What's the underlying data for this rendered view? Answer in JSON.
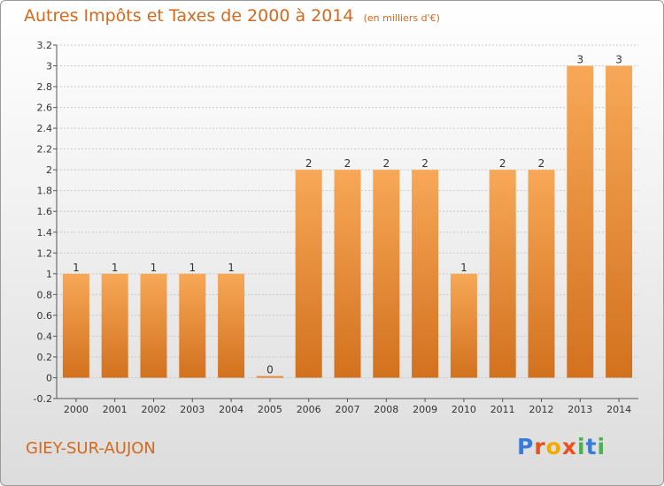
{
  "title": "Autres Impôts et Taxes de 2000 à 2014",
  "subtitle": "(en milliers d'€)",
  "commune": "GIEY-SUR-AUJON",
  "logo": {
    "letters": [
      "P",
      "r",
      "o",
      "x",
      "i",
      "t",
      "i"
    ],
    "colors": [
      "#3a7bd5",
      "#e8501e",
      "#f2a900",
      "#e8501e",
      "#4caf50",
      "#3a7bd5",
      "#4caf50"
    ]
  },
  "colors": {
    "bar": "#f0953f",
    "bar_light": "#f7a857",
    "bar_dark": "#d2711e",
    "text": "#d2691e",
    "value_label": "#333333"
  },
  "chart_data": {
    "type": "bar",
    "categories": [
      "2000",
      "2001",
      "2002",
      "2003",
      "2004",
      "2005",
      "2006",
      "2007",
      "2008",
      "2009",
      "2010",
      "2011",
      "2012",
      "2013",
      "2014"
    ],
    "values": [
      1,
      1,
      1,
      1,
      1,
      0,
      2,
      2,
      2,
      2,
      1,
      2,
      2,
      3,
      3
    ],
    "value_labels": [
      "1",
      "1",
      "1",
      "1",
      "1",
      "0",
      "2",
      "2",
      "2",
      "2",
      "1",
      "2",
      "2",
      "3",
      "3"
    ],
    "yticks": [
      -0.2,
      0,
      0.2,
      0.4,
      0.6,
      0.8,
      1,
      1.2,
      1.4,
      1.6,
      1.8,
      2,
      2.2,
      2.4,
      2.6,
      2.8,
      3,
      3.2
    ],
    "ytick_labels": [
      "-0.2",
      "0",
      "0.2",
      "0.4",
      "0.6",
      "0.8",
      "1",
      "1.2",
      "1.4",
      "1.6",
      "1.8",
      "2",
      "2.2",
      "2.4",
      "2.6",
      "2.8",
      "3",
      "3.2"
    ],
    "ylim": [
      -0.2,
      3.2
    ],
    "grid": true
  }
}
